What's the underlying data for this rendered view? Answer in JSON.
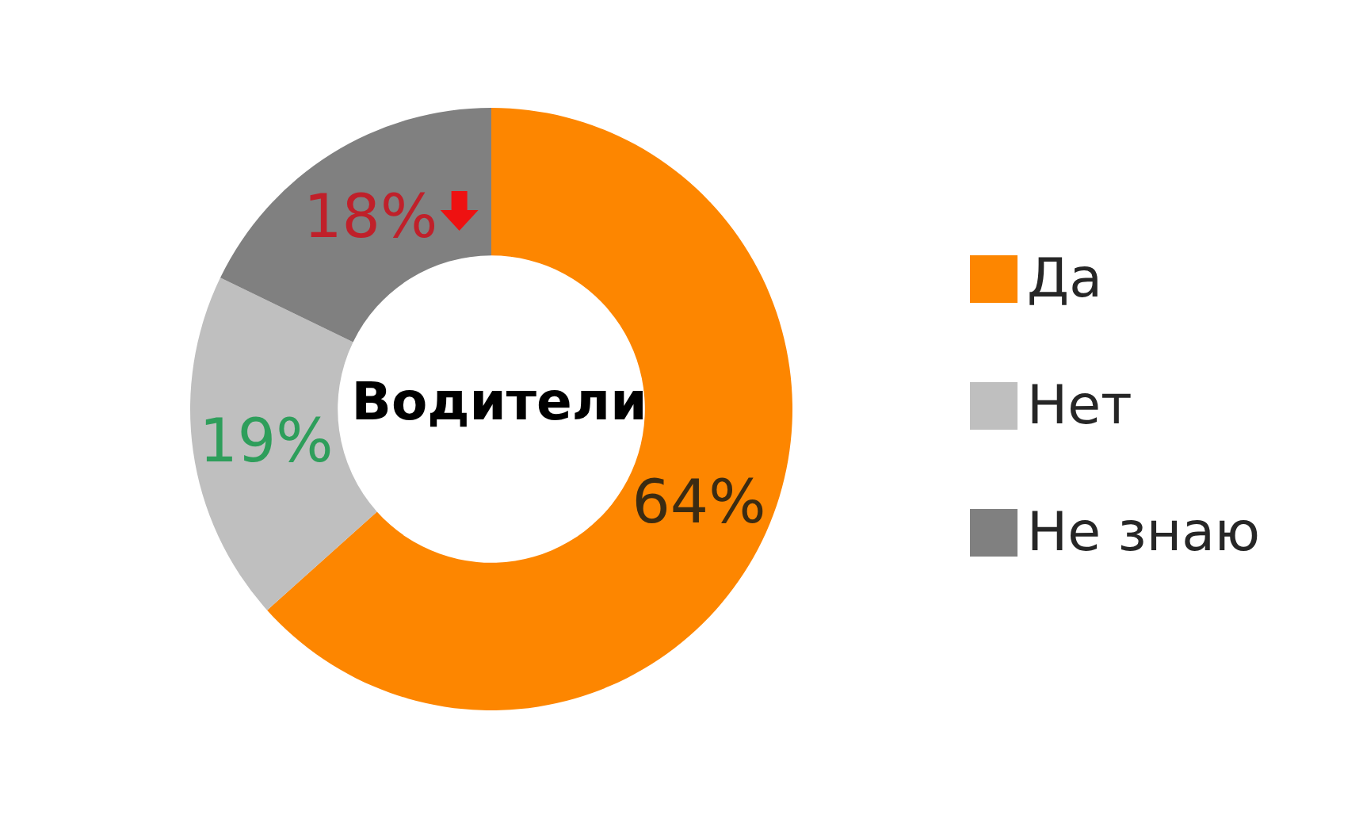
{
  "chart_data": {
    "type": "donut",
    "title": "Водители",
    "categories": [
      "Да",
      "Нет",
      "Не знаю"
    ],
    "values": [
      64,
      19,
      18
    ],
    "colors": [
      "#fd8600",
      "#bfbfbf",
      "#808080"
    ],
    "value_labels": [
      "64%",
      "19%",
      "18%"
    ],
    "legend": "right"
  }
}
